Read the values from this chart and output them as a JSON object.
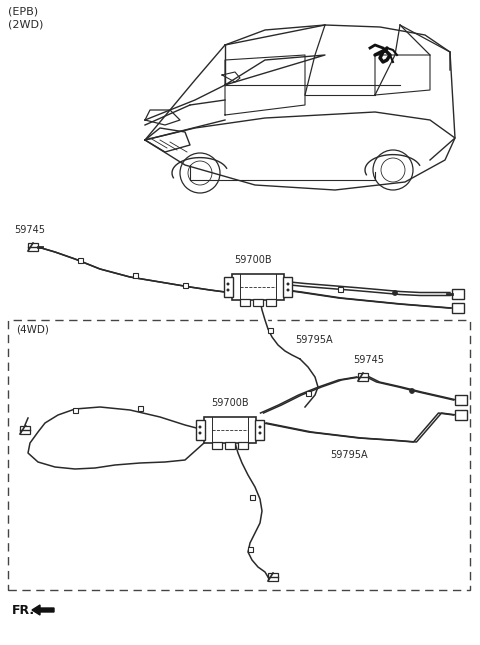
{
  "bg_color": "#ffffff",
  "line_color": "#2a2a2a",
  "text_color": "#2a2a2a",
  "dashed_color": "#444444",
  "label_epb_2wd": "(EPB)\n(2WD)",
  "label_4wd": "(4WD)",
  "label_fr": "FR.",
  "part_59745_1": "59745",
  "part_59700B_1": "59700B",
  "part_59795A_1": "59795A",
  "part_59745_2": "59745",
  "part_59700B_2": "59700B",
  "part_59795A_2": "59795A",
  "figsize": [
    4.8,
    6.45
  ],
  "dpi": 100,
  "xlim": [
    0,
    480
  ],
  "ylim": [
    0,
    645
  ]
}
